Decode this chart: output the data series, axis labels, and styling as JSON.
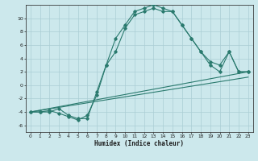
{
  "xlabel": "Humidex (Indice chaleur)",
  "bg_color": "#cce8ec",
  "line_color": "#2a7a6e",
  "grid_color": "#aacdd4",
  "xlim": [
    -0.5,
    23.5
  ],
  "ylim": [
    -7,
    12
  ],
  "xticks": [
    0,
    1,
    2,
    3,
    4,
    5,
    6,
    7,
    8,
    9,
    10,
    11,
    12,
    13,
    14,
    15,
    16,
    17,
    18,
    19,
    20,
    21,
    22,
    23
  ],
  "yticks": [
    -6,
    -4,
    -2,
    0,
    2,
    4,
    6,
    8,
    10
  ],
  "line1_x": [
    0,
    1,
    2,
    3,
    4,
    5,
    6,
    7,
    8,
    9,
    10,
    11,
    12,
    13,
    14,
    15,
    16,
    17,
    18,
    19,
    20,
    21,
    22,
    23
  ],
  "line1_y": [
    -4,
    -4,
    -4,
    -3.5,
    -4.5,
    -5,
    -5,
    -1,
    3,
    7,
    9,
    11,
    11.5,
    12,
    11.5,
    11,
    9,
    7,
    5,
    3.5,
    3,
    5,
    2,
    2
  ],
  "line2_x": [
    0,
    1,
    2,
    3,
    4,
    5,
    6,
    7,
    8,
    9,
    10,
    11,
    12,
    13,
    14,
    15,
    16,
    17,
    18,
    19,
    20,
    21,
    22,
    23
  ],
  "line2_y": [
    -4,
    -4,
    -3.8,
    -4.2,
    -4.7,
    -5.2,
    -4.5,
    -1.5,
    3,
    5,
    8.5,
    10.5,
    11,
    11.5,
    11,
    11,
    9,
    7,
    5,
    3,
    2,
    5,
    2,
    2
  ],
  "line3_x": [
    0,
    23
  ],
  "line3_y": [
    -4.0,
    2.0
  ],
  "line4_x": [
    0,
    23
  ],
  "line4_y": [
    -4.0,
    1.2
  ]
}
